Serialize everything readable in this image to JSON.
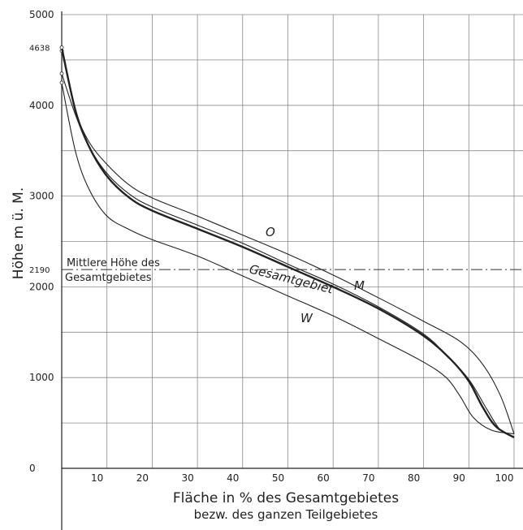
{
  "chart_data": {
    "type": "line",
    "xlabel": "Fläche in % des Gesamtgebietes",
    "xlabel_sub": "bezw. des ganzen Teilgebietes",
    "ylabel": "Höhe m ü. M.",
    "xlim": [
      0,
      100
    ],
    "ylim": [
      0,
      5000
    ],
    "x_ticks": [
      10,
      20,
      30,
      40,
      50,
      60,
      70,
      80,
      90,
      100
    ],
    "y_ticks": [
      0,
      1000,
      2000,
      3000,
      4000,
      5000
    ],
    "y_special_ticks": [
      4638,
      2190
    ],
    "grid": true,
    "reference_line": {
      "y": 2190,
      "label_line1": "Mittlere Höhe des",
      "label_line2": "Gesamtgebietes"
    },
    "series": [
      {
        "name": "O",
        "x": [
          0,
          3,
          6,
          10,
          15,
          20,
          30,
          40,
          50,
          60,
          70,
          80,
          88,
          93,
          97,
          100
        ],
        "y": [
          4600,
          3950,
          3600,
          3350,
          3120,
          2980,
          2780,
          2570,
          2360,
          2130,
          1880,
          1620,
          1400,
          1150,
          800,
          380
        ]
      },
      {
        "name": "M",
        "x": [
          0,
          3,
          6,
          10,
          15,
          20,
          30,
          40,
          50,
          60,
          70,
          80,
          85,
          90,
          94,
          97,
          100
        ],
        "y": [
          4350,
          3900,
          3550,
          3250,
          3020,
          2880,
          2680,
          2480,
          2250,
          2030,
          1780,
          1480,
          1250,
          980,
          650,
          420,
          350
        ]
      },
      {
        "name": "Gesamtgebiet",
        "x": [
          0,
          3,
          6,
          10,
          15,
          20,
          30,
          40,
          50,
          60,
          70,
          80,
          86,
          90,
          93,
          96,
          100
        ],
        "y": [
          4638,
          3950,
          3550,
          3220,
          2980,
          2840,
          2640,
          2440,
          2220,
          2000,
          1760,
          1460,
          1200,
          960,
          680,
          460,
          340
        ]
      },
      {
        "name": "W",
        "x": [
          0,
          3,
          6,
          10,
          15,
          20,
          30,
          40,
          50,
          60,
          70,
          80,
          85,
          88,
          91,
          95,
          100
        ],
        "y": [
          4250,
          3500,
          3080,
          2780,
          2630,
          2520,
          2340,
          2120,
          1900,
          1680,
          1430,
          1170,
          1000,
          800,
          560,
          420,
          380
        ]
      }
    ]
  }
}
